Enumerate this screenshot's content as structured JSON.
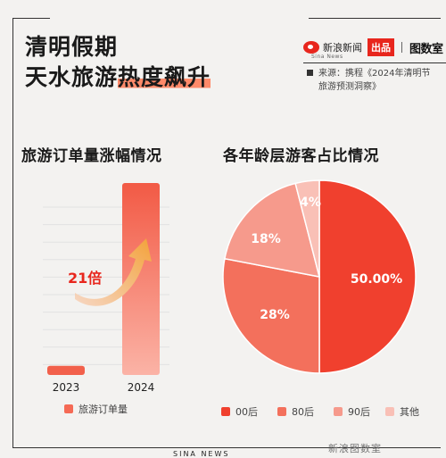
{
  "title": {
    "line1": "清明假期",
    "line2a": "天水旅游",
    "line2b": "热度飙升"
  },
  "brand": {
    "name": "新浪新闻",
    "sub": "Sina News",
    "badge": "出品",
    "partner": "图数室"
  },
  "source": {
    "line1": "来源：携程《2024年清明节",
    "line2": "旅游预测洞察》"
  },
  "colors": {
    "accent": "#f0402e",
    "bar": "#f56a55",
    "grid": "#e2e2e2"
  },
  "chart_data": [
    {
      "type": "bar",
      "title": "旅游订单量涨幅情况",
      "categories": [
        "2023",
        "2024"
      ],
      "series": [
        {
          "name": "旅游订单量",
          "values": [
            1,
            21
          ]
        }
      ],
      "annotation": "21倍",
      "legend": "bottom"
    },
    {
      "type": "pie",
      "title": "各年龄层游客占比情况",
      "slices": [
        {
          "label": "00后",
          "value": 50,
          "text": "50.00%",
          "color": "#f0402e"
        },
        {
          "label": "80后",
          "value": 28,
          "text": "28%",
          "color": "#f3705c"
        },
        {
          "label": "90后",
          "value": 18,
          "text": "18%",
          "color": "#f69a8c"
        },
        {
          "label": "其他",
          "value": 4,
          "text": "4%",
          "color": "#f9c0b6"
        }
      ],
      "legend": "bottom"
    }
  ],
  "footer": {
    "left": "SINA NEWS",
    "right": "新浪图数室"
  }
}
